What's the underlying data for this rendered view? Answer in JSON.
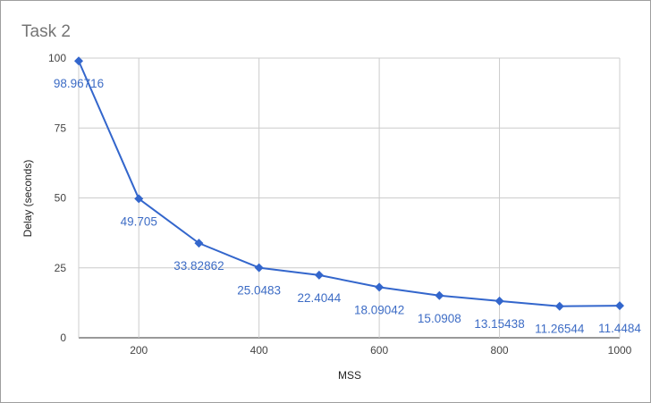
{
  "chart_data": {
    "type": "line",
    "title": "Task 2",
    "xlabel": "MSS",
    "ylabel": "Delay (seconds)",
    "xlim": [
      100,
      1000
    ],
    "ylim": [
      0,
      100
    ],
    "x_ticks": [
      200,
      400,
      600,
      800,
      1000
    ],
    "y_ticks": [
      0,
      25,
      50,
      75,
      100
    ],
    "grid": true,
    "legend": "none",
    "colors": {
      "series": "#3366cc",
      "labels": "#3d6cc5",
      "grid": "#cccccc"
    },
    "x": [
      100,
      200,
      300,
      400,
      500,
      600,
      700,
      800,
      900,
      1000
    ],
    "series": [
      {
        "values": [
          98.96716,
          49.705,
          33.82862,
          25.0483,
          22.4044,
          18.09042,
          15.0908,
          13.15438,
          11.26544,
          11.4484
        ],
        "labels": [
          "98.96716",
          "49.705",
          "33.82862",
          "25.0483",
          "22.4044",
          "18.09042",
          "15.0908",
          "13.15438",
          "11.26544",
          "11.4484"
        ]
      }
    ]
  }
}
